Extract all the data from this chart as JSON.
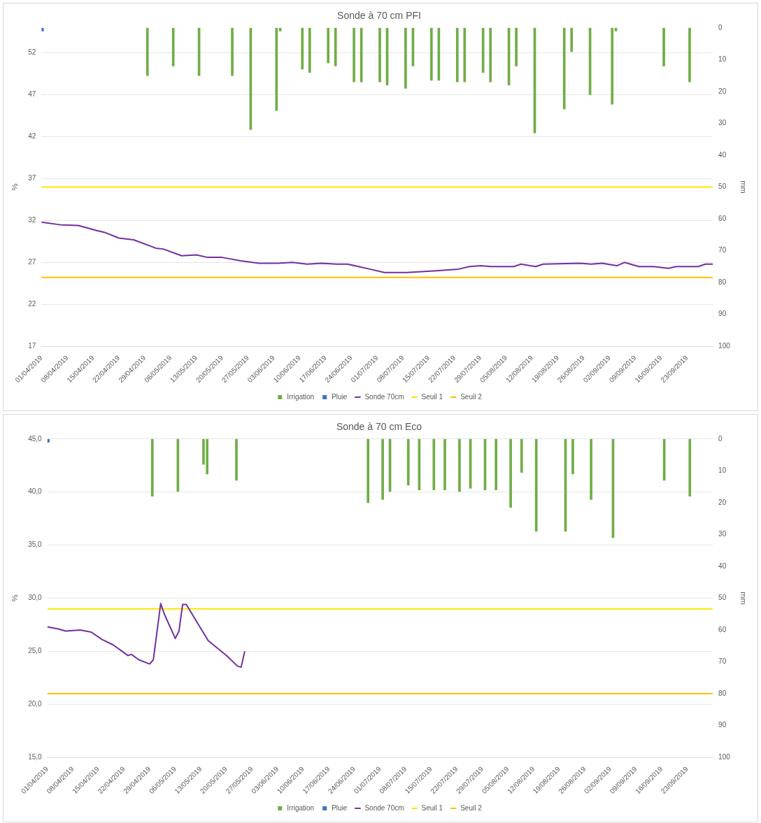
{
  "chart_data": [
    {
      "type": "bar",
      "title": "Sonde à 70 cm PFI",
      "ylabel": "%",
      "y2label": "mm",
      "xlim": [
        "2019-04-01",
        "2019-09-30"
      ],
      "xticks": [
        {
          "value": "2019-04-01",
          "label": "01/04/2019"
        },
        {
          "value": "2019-04-08",
          "label": "08/04/2019"
        },
        {
          "value": "2019-04-15",
          "label": "15/04/2019"
        },
        {
          "value": "2019-04-22",
          "label": "22/04/2019"
        },
        {
          "value": "2019-04-29",
          "label": "29/04/2019"
        },
        {
          "value": "2019-05-06",
          "label": "06/05/2019"
        },
        {
          "value": "2019-05-13",
          "label": "13/05/2019"
        },
        {
          "value": "2019-05-20",
          "label": "20/05/2019"
        },
        {
          "value": "2019-05-27",
          "label": "27/05/2019"
        },
        {
          "value": "2019-06-03",
          "label": "03/06/2019"
        },
        {
          "value": "2019-06-10",
          "label": "10/06/2019"
        },
        {
          "value": "2019-06-17",
          "label": "17/06/2019"
        },
        {
          "value": "2019-06-24",
          "label": "24/06/2019"
        },
        {
          "value": "2019-07-01",
          "label": "01/07/2019"
        },
        {
          "value": "2019-07-08",
          "label": "08/07/2019"
        },
        {
          "value": "2019-07-15",
          "label": "15/07/2019"
        },
        {
          "value": "2019-07-22",
          "label": "22/07/2019"
        },
        {
          "value": "2019-07-29",
          "label": "29/07/2019"
        },
        {
          "value": "2019-08-05",
          "label": "05/08/2019"
        },
        {
          "value": "2019-08-12",
          "label": "12/08/2019"
        },
        {
          "value": "2019-08-19",
          "label": "19/08/2019"
        },
        {
          "value": "2019-08-26",
          "label": "26/08/2019"
        },
        {
          "value": "2019-09-02",
          "label": "02/09/2019"
        },
        {
          "value": "2019-09-09",
          "label": "09/09/2019"
        },
        {
          "value": "2019-09-16",
          "label": "16/09/2019"
        },
        {
          "value": "2019-09-23",
          "label": "23/09/2019"
        }
      ],
      "ylim": [
        17,
        55
      ],
      "yticks": [
        17,
        22,
        27,
        32,
        37,
        42,
        47,
        52
      ],
      "y2lim": [
        100,
        0
      ],
      "y2ticks": [
        0,
        10,
        20,
        30,
        40,
        50,
        60,
        70,
        80,
        90,
        100
      ],
      "grid": "y",
      "legend": "bottom",
      "marker": "none",
      "line_style": "solid",
      "series": [
        {
          "name": "Irrigation",
          "axis": "y2",
          "color": "#70ad47",
          "x": [
            "2019-04-30",
            "2019-05-07",
            "2019-05-14",
            "2019-05-23",
            "2019-05-28",
            "2019-06-04",
            "2019-06-05",
            "2019-06-11",
            "2019-06-13",
            "2019-06-18",
            "2019-06-20",
            "2019-06-25",
            "2019-06-27",
            "2019-07-02",
            "2019-07-04",
            "2019-07-09",
            "2019-07-11",
            "2019-07-16",
            "2019-07-18",
            "2019-07-23",
            "2019-07-25",
            "2019-07-30",
            "2019-08-01",
            "2019-08-06",
            "2019-08-08",
            "2019-08-13",
            "2019-08-21",
            "2019-08-23",
            "2019-08-28",
            "2019-09-03",
            "2019-09-04",
            "2019-09-17",
            "2019-09-24"
          ],
          "values": [
            15,
            12,
            15,
            15,
            32,
            26,
            1,
            13,
            14,
            11,
            12,
            17,
            17,
            17,
            18,
            19,
            12,
            16.5,
            16.5,
            17,
            17,
            14,
            17,
            18,
            12,
            33,
            25.5,
            7.5,
            21,
            24,
            1,
            12,
            17
          ]
        },
        {
          "name": "Pluie",
          "type": "bar",
          "axis": "y2",
          "color": "#4472c4",
          "x": [
            "2019-04-01"
          ],
          "values": [
            1
          ]
        },
        {
          "name": "Sonde 70cm",
          "type": "line",
          "color": "#7030a0",
          "x": [
            "2019-04-01",
            "2019-04-06",
            "2019-04-11",
            "2019-04-16",
            "2019-04-18",
            "2019-04-22",
            "2019-04-26",
            "2019-05-02",
            "2019-05-04",
            "2019-05-09",
            "2019-05-13",
            "2019-05-16",
            "2019-05-20",
            "2019-05-25",
            "2019-05-30",
            "2019-06-04",
            "2019-06-08",
            "2019-06-12",
            "2019-06-16",
            "2019-06-20",
            "2019-06-23",
            "2019-06-26",
            "2019-06-29",
            "2019-07-03",
            "2019-07-05",
            "2019-07-09",
            "2019-07-17",
            "2019-07-23",
            "2019-07-26",
            "2019-07-29",
            "2019-08-01",
            "2019-08-07",
            "2019-08-09",
            "2019-08-13",
            "2019-08-15",
            "2019-08-25",
            "2019-08-28",
            "2019-08-31",
            "2019-09-04",
            "2019-09-06",
            "2019-09-10",
            "2019-09-14",
            "2019-09-18",
            "2019-09-20",
            "2019-09-26",
            "2019-09-28",
            "2019-09-30"
          ],
          "values": [
            31.8,
            31.5,
            31.4,
            30.8,
            30.6,
            29.9,
            29.7,
            28.7,
            28.6,
            27.8,
            27.9,
            27.6,
            27.6,
            27.2,
            26.9,
            26.9,
            27.0,
            26.8,
            26.9,
            26.8,
            26.8,
            26.5,
            26.2,
            25.8,
            25.8,
            25.8,
            26.0,
            26.2,
            26.5,
            26.6,
            26.5,
            26.5,
            26.8,
            26.5,
            26.8,
            26.9,
            26.8,
            26.9,
            26.6,
            27.0,
            26.5,
            26.5,
            26.3,
            26.5,
            26.5,
            26.8,
            26.8
          ]
        },
        {
          "name": "Seuil 1",
          "type": "line",
          "color": "#ffe600",
          "x": [
            "2019-04-01",
            "2019-09-30"
          ],
          "values": [
            36,
            36
          ]
        },
        {
          "name": "Seuil 2",
          "type": "line",
          "color": "#ffc000",
          "x": [
            "2019-04-01",
            "2019-09-30"
          ],
          "values": [
            25.2,
            25.2
          ]
        }
      ]
    },
    {
      "type": "bar",
      "title": "Sonde à 70 cm Eco",
      "ylabel": "%",
      "y2label": "mm",
      "xlim": [
        "2019-04-01",
        "2019-09-30"
      ],
      "xticks": [
        {
          "value": "2019-04-01",
          "label": "01/04/2019"
        },
        {
          "value": "2019-04-08",
          "label": "08/04/2019"
        },
        {
          "value": "2019-04-15",
          "label": "15/04/2019"
        },
        {
          "value": "2019-04-22",
          "label": "22/04/2019"
        },
        {
          "value": "2019-04-29",
          "label": "29/04/2019"
        },
        {
          "value": "2019-05-06",
          "label": "06/05/2019"
        },
        {
          "value": "2019-05-13",
          "label": "13/05/2019"
        },
        {
          "value": "2019-05-20",
          "label": "20/05/2019"
        },
        {
          "value": "2019-05-27",
          "label": "27/05/2019"
        },
        {
          "value": "2019-06-03",
          "label": "03/06/2019"
        },
        {
          "value": "2019-06-10",
          "label": "10/06/2019"
        },
        {
          "value": "2019-06-17",
          "label": "17/06/2019"
        },
        {
          "value": "2019-06-24",
          "label": "24/06/2019"
        },
        {
          "value": "2019-07-01",
          "label": "01/07/2019"
        },
        {
          "value": "2019-07-08",
          "label": "08/07/2019"
        },
        {
          "value": "2019-07-15",
          "label": "15/07/2019"
        },
        {
          "value": "2019-07-22",
          "label": "22/07/2019"
        },
        {
          "value": "2019-07-29",
          "label": "29/07/2019"
        },
        {
          "value": "2019-08-05",
          "label": "05/08/2019"
        },
        {
          "value": "2019-08-12",
          "label": "12/08/2019"
        },
        {
          "value": "2019-08-19",
          "label": "19/08/2019"
        },
        {
          "value": "2019-08-26",
          "label": "26/08/2019"
        },
        {
          "value": "2019-09-02",
          "label": "02/09/2019"
        },
        {
          "value": "2019-09-09",
          "label": "09/09/2019"
        },
        {
          "value": "2019-09-16",
          "label": "16/09/2019"
        },
        {
          "value": "2019-09-23",
          "label": "23/09/2019"
        }
      ],
      "ylim": [
        15,
        45
      ],
      "yticks": [
        {
          "value": 15,
          "label": "15,0"
        },
        {
          "value": 20,
          "label": "20,0"
        },
        {
          "value": 25,
          "label": "25,0"
        },
        {
          "value": 30,
          "label": "30,0"
        },
        {
          "value": 35,
          "label": "35,0"
        },
        {
          "value": 40,
          "label": "40,0"
        },
        {
          "value": 45,
          "label": "45,0"
        }
      ],
      "y2lim": [
        100,
        0
      ],
      "y2ticks": [
        0,
        10,
        20,
        30,
        40,
        50,
        60,
        70,
        80,
        90,
        100
      ],
      "grid": "y",
      "legend": "bottom",
      "marker": "none",
      "line_style": "solid",
      "series": [
        {
          "name": "Irrigation",
          "axis": "y2",
          "color": "#70ad47",
          "x": [
            "2019-04-30",
            "2019-05-07",
            "2019-05-14",
            "2019-05-15",
            "2019-05-23",
            "2019-06-28",
            "2019-07-02",
            "2019-07-04",
            "2019-07-09",
            "2019-07-12",
            "2019-07-16",
            "2019-07-19",
            "2019-07-23",
            "2019-07-26",
            "2019-07-30",
            "2019-08-02",
            "2019-08-06",
            "2019-08-09",
            "2019-08-13",
            "2019-08-21",
            "2019-08-23",
            "2019-08-28",
            "2019-09-03",
            "2019-09-17",
            "2019-09-24"
          ],
          "values": [
            18,
            16.5,
            8,
            11,
            13,
            20,
            19,
            16.5,
            14.5,
            16,
            16,
            16,
            16.5,
            15.5,
            16,
            16,
            21.5,
            10.5,
            29,
            29,
            11,
            19,
            31,
            13,
            18
          ]
        },
        {
          "name": "Pluie",
          "type": "bar",
          "axis": "y2",
          "color": "#4472c4",
          "x": [
            "2019-04-01"
          ],
          "values": [
            1
          ]
        },
        {
          "name": "Sonde 70cm",
          "type": "line",
          "color": "#7030a0",
          "x": [
            "2019-04-01",
            "2019-04-04",
            "2019-04-06",
            "2019-04-10",
            "2019-04-13",
            "2019-04-16",
            "2019-04-19",
            "2019-04-23",
            "2019-04-24",
            "2019-04-26",
            "2019-04-29",
            "2019-04-30",
            "2019-05-02",
            "2019-05-03",
            "2019-05-06",
            "2019-05-07",
            "2019-05-08",
            "2019-05-09",
            "2019-05-15",
            "2019-05-20",
            "2019-05-23",
            "2019-05-24",
            "2019-05-25"
          ],
          "values": [
            27.3,
            27.1,
            26.9,
            27.0,
            26.8,
            26.1,
            25.6,
            24.6,
            24.7,
            24.2,
            23.8,
            24.2,
            29.5,
            28.5,
            26.2,
            26.9,
            29.4,
            29.4,
            26.0,
            24.6,
            23.6,
            23.5,
            25.0
          ]
        },
        {
          "name": "Seuil 1",
          "type": "line",
          "color": "#ffe600",
          "x": [
            "2019-04-01",
            "2019-09-30"
          ],
          "values": [
            29,
            29
          ]
        },
        {
          "name": "Seuil 2",
          "type": "line",
          "color": "#ffc000",
          "x": [
            "2019-04-01",
            "2019-09-30"
          ],
          "values": [
            21,
            21
          ]
        }
      ]
    }
  ]
}
